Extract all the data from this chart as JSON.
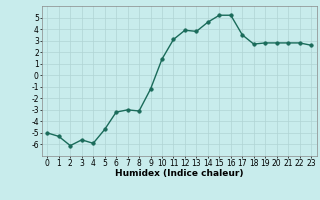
{
  "x": [
    0,
    1,
    2,
    3,
    4,
    5,
    6,
    7,
    8,
    9,
    10,
    11,
    12,
    13,
    14,
    15,
    16,
    17,
    18,
    19,
    20,
    21,
    22,
    23
  ],
  "y": [
    -5.0,
    -5.3,
    -6.1,
    -5.6,
    -5.9,
    -4.7,
    -3.2,
    -3.0,
    -3.1,
    -1.2,
    1.4,
    3.1,
    3.9,
    3.8,
    4.6,
    5.2,
    5.2,
    3.5,
    2.7,
    2.8,
    2.8,
    2.8,
    2.8,
    2.6
  ],
  "line_color": "#1a6b5a",
  "marker_color": "#1a6b5a",
  "bg_color": "#c8ecec",
  "grid_color": "#b0d4d4",
  "xlabel": "Humidex (Indice chaleur)",
  "ylim": [
    -7,
    6
  ],
  "xlim": [
    -0.5,
    23.5
  ],
  "yticks": [
    -6,
    -5,
    -4,
    -3,
    -2,
    -1,
    0,
    1,
    2,
    3,
    4,
    5
  ],
  "xticks": [
    0,
    1,
    2,
    3,
    4,
    5,
    6,
    7,
    8,
    9,
    10,
    11,
    12,
    13,
    14,
    15,
    16,
    17,
    18,
    19,
    20,
    21,
    22,
    23
  ],
  "tick_fontsize": 5.5,
  "xlabel_fontsize": 6.5,
  "marker_size": 2.5,
  "line_width": 1.0
}
